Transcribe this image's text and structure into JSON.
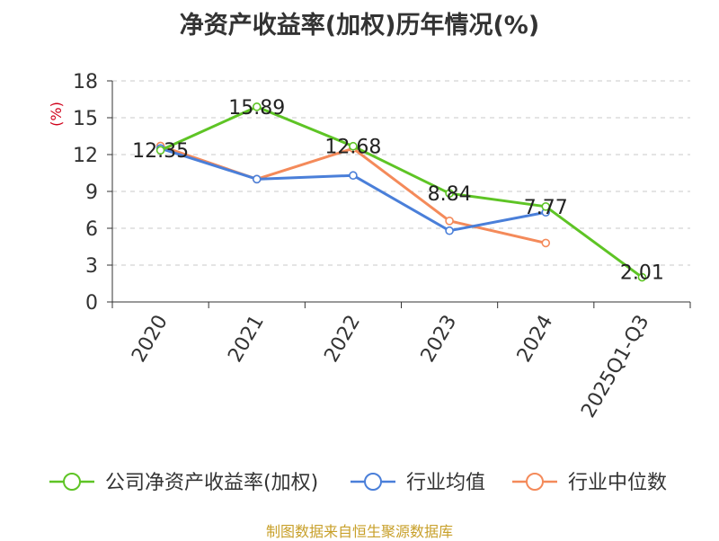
{
  "chart_data": {
    "type": "line",
    "title": "净资产收益率(加权)历年情况(%)",
    "ylabel": "(%)",
    "ylim": [
      0,
      18
    ],
    "yticks": [
      0,
      3,
      6,
      9,
      12,
      15,
      18
    ],
    "categories": [
      "2020",
      "2021",
      "2022",
      "2023",
      "2024",
      "2025Q1-Q3"
    ],
    "grid": true,
    "legend_position": "bottom",
    "series": [
      {
        "name": "公司净资产收益率(加权)",
        "color": "#5ec425",
        "values": [
          12.35,
          15.89,
          12.68,
          8.84,
          7.77,
          2.01
        ],
        "labels": [
          "12.35",
          "15.89",
          "12.68",
          "8.84",
          "7.77",
          "2.01"
        ]
      },
      {
        "name": "行业均值",
        "color": "#4a7fd9",
        "values": [
          12.5,
          10.0,
          10.3,
          5.8,
          7.3,
          null
        ]
      },
      {
        "name": "行业中位数",
        "color": "#f48a5a",
        "values": [
          12.7,
          10.0,
          12.5,
          6.6,
          4.8,
          null
        ]
      }
    ]
  },
  "footer": {
    "source": "制图数据来自恒生聚源数据库"
  }
}
